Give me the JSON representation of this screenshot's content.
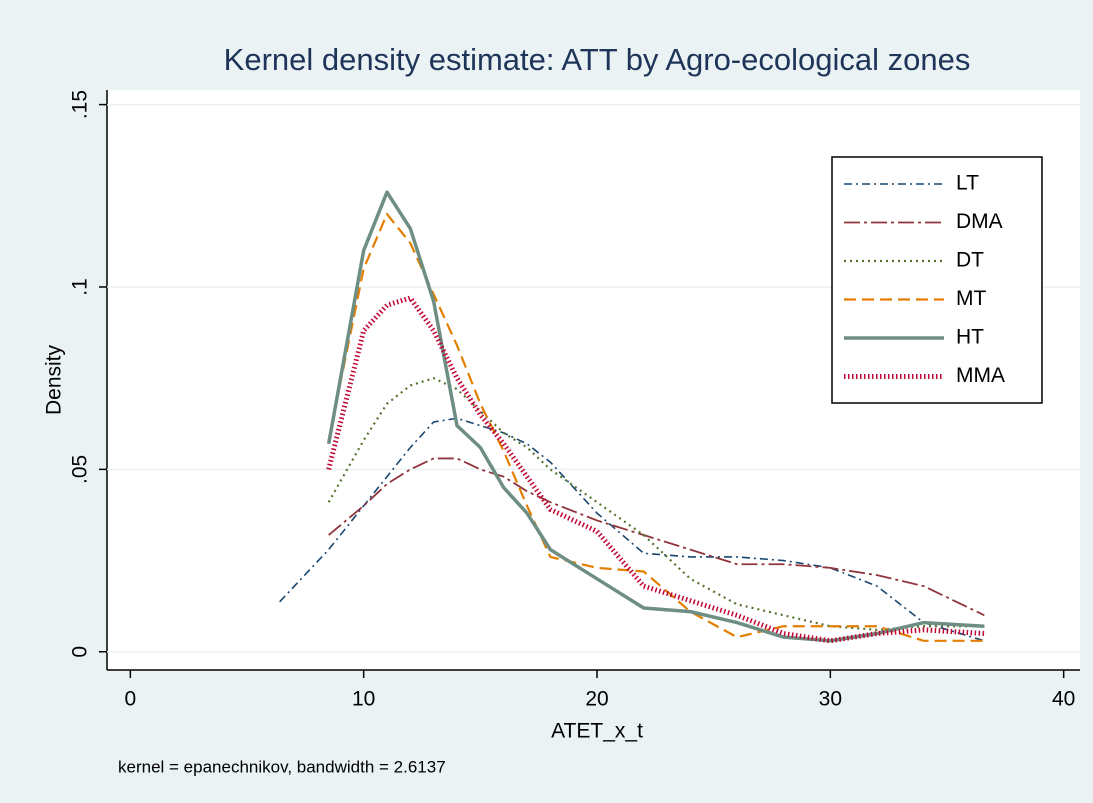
{
  "chart_data": {
    "type": "line",
    "title": "Kernel density estimate: ATT by Agro-ecological zones",
    "x_label": "ATET_x_t",
    "y_label": "Density",
    "note": "kernel = epanechnikov, bandwidth = 2.6137",
    "x": [
      6.4,
      8.5,
      10,
      11,
      12,
      13,
      14,
      15,
      16,
      17,
      18,
      20,
      22,
      24,
      26,
      28,
      30,
      32,
      34,
      36.6
    ],
    "series": [
      {
        "name": "LT",
        "color": "#1a476f",
        "dash": "dash-dot",
        "values": [
          0.0137,
          0.028,
          0.04,
          0.048,
          0.056,
          0.063,
          0.064,
          0.062,
          0.06,
          0.057,
          0.052,
          0.038,
          0.027,
          0.026,
          0.026,
          0.025,
          0.023,
          0.018,
          0.008,
          0.003
        ]
      },
      {
        "name": "DMA",
        "color": "#90353b",
        "dash": "long-dash-dot",
        "values": [
          null,
          0.032,
          0.04,
          0.046,
          0.05,
          0.053,
          0.053,
          0.05,
          0.048,
          0.044,
          0.041,
          0.036,
          0.032,
          0.028,
          0.024,
          0.024,
          0.023,
          0.021,
          0.018,
          0.01
        ]
      },
      {
        "name": "DT",
        "color": "#55752f",
        "dash": "dot",
        "values": [
          null,
          0.041,
          0.058,
          0.068,
          0.073,
          0.075,
          0.072,
          0.066,
          0.06,
          0.056,
          0.05,
          0.041,
          0.032,
          0.02,
          0.013,
          0.01,
          0.007,
          0.006,
          0.007,
          0.007
        ]
      },
      {
        "name": "MT",
        "color": "#e37e00",
        "dash": "dash",
        "values": [
          null,
          0.058,
          0.105,
          0.12,
          0.112,
          0.098,
          0.084,
          0.068,
          0.055,
          0.04,
          0.026,
          0.023,
          0.022,
          0.011,
          0.004,
          0.007,
          0.007,
          0.007,
          0.003,
          0.003
        ]
      },
      {
        "name": "HT",
        "color": "#6e8e84",
        "dash": "solid",
        "values": [
          null,
          0.057,
          0.11,
          0.126,
          0.116,
          0.096,
          0.062,
          0.056,
          0.045,
          0.038,
          0.028,
          0.02,
          0.012,
          0.011,
          0.008,
          0.004,
          0.003,
          0.005,
          0.008,
          0.007
        ]
      },
      {
        "name": "MMA",
        "color": "#c10534",
        "dash": "shortdot",
        "values": [
          null,
          0.05,
          0.088,
          0.095,
          0.097,
          0.088,
          0.075,
          0.065,
          0.057,
          0.048,
          0.039,
          0.033,
          0.018,
          0.014,
          0.01,
          0.005,
          0.003,
          0.005,
          0.006,
          0.005
        ]
      }
    ],
    "xlim": [
      -1,
      40.7
    ],
    "xticks": [
      0,
      10,
      20,
      30,
      40
    ],
    "ylim": [
      -0.005,
      0.154
    ],
    "yticks": [
      0,
      {
        "value": 0.05,
        "label": ".05"
      },
      {
        "value": 0.1,
        "label": ".1"
      },
      {
        "value": 0.15,
        "label": ".15"
      }
    ],
    "grid": true,
    "legend": "top-right"
  }
}
